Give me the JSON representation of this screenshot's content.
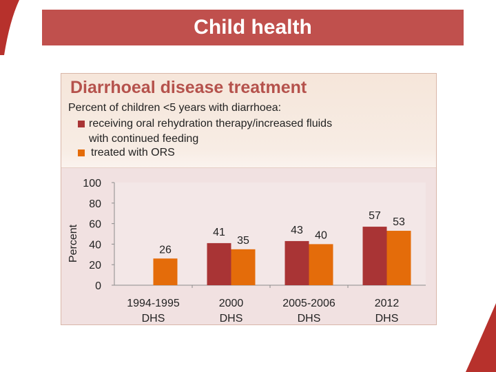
{
  "header": {
    "title": "Child health"
  },
  "colors": {
    "header": "#c0504d",
    "series_1": "#a93435",
    "series_2": "#e46c0a",
    "title": "#b5524c"
  },
  "chart_data": {
    "type": "bar",
    "title": "Diarrhoeal disease treatment",
    "subtitle": "Percent of children <5 years with diarrhoea:",
    "categories": [
      [
        "1994-1995",
        "DHS"
      ],
      [
        "2000",
        "DHS"
      ],
      [
        "2005-2006",
        "DHS"
      ],
      [
        "2012",
        "DHS"
      ]
    ],
    "series": [
      {
        "name": "receiving oral rehydration therapy/increased fluids with continued feeding",
        "name_lines": [
          "receiving oral rehydration therapy/increased fluids",
          "with continued feeding"
        ],
        "values": [
          null,
          41,
          43,
          57
        ]
      },
      {
        "name": "treated with ORS",
        "name_lines": [
          "treated with ORS"
        ],
        "values": [
          26,
          35,
          40,
          53
        ]
      }
    ],
    "ylabel": "Percent",
    "ylim": [
      0,
      100
    ],
    "yticks": [
      0,
      20,
      40,
      60,
      80,
      100
    ],
    "legend_position": "top-left",
    "grid": false
  }
}
